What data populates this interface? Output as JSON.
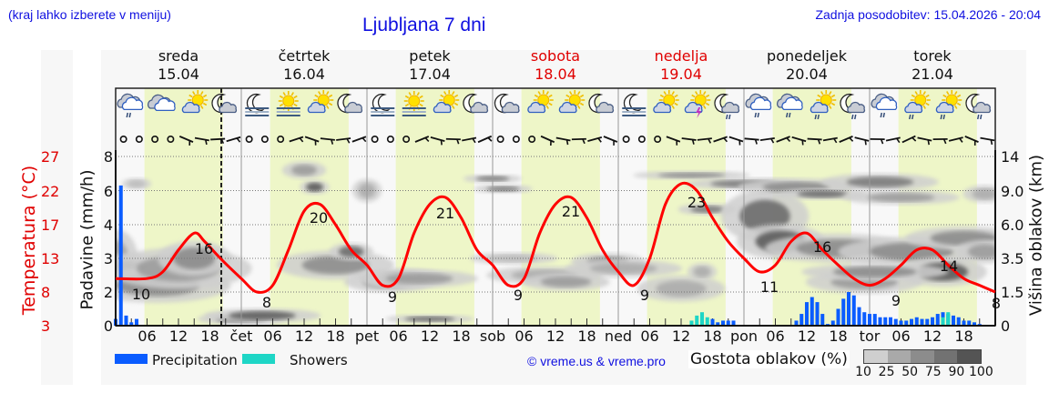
{
  "header": {
    "left_note": "(kraj lahko izberete v meniju)",
    "title": "Ljubljana 7 dni",
    "updated": "Zadnja posodobitev: 15.04.2026 - 20:04"
  },
  "days": [
    {
      "name": "sreda",
      "date": "15.04",
      "weekend": false
    },
    {
      "name": "četrtek",
      "date": "16.04",
      "weekend": false
    },
    {
      "name": "petek",
      "date": "17.04",
      "weekend": false
    },
    {
      "name": "sobota",
      "date": "18.04",
      "weekend": true
    },
    {
      "name": "nedelja",
      "date": "19.04",
      "weekend": true
    },
    {
      "name": "ponedeljek",
      "date": "20.04",
      "weekend": false
    },
    {
      "name": "torek",
      "date": "21.04",
      "weekend": false
    }
  ],
  "axes": {
    "temp_label": "Temperatura (°C)",
    "precip_label": "Padavine (mm/h)",
    "cloud_label": "Višina oblakov (km)",
    "temp_ticks": [
      "27",
      "22",
      "17",
      "13",
      "8",
      "3"
    ],
    "precip_ticks": [
      "8",
      "6",
      "4",
      "3",
      "2",
      "0"
    ],
    "cloud_ticks": [
      "14",
      "9.0",
      "6.0",
      "3.5",
      "1.5",
      "0"
    ],
    "x_ticks": [
      "06",
      "12",
      "18",
      "čet",
      "06",
      "12",
      "18",
      "pet",
      "06",
      "12",
      "18",
      "sob",
      "06",
      "12",
      "18",
      "ned",
      "06",
      "12",
      "18",
      "pon",
      "06",
      "12",
      "18",
      "tor",
      "06",
      "12",
      "18"
    ]
  },
  "legend": {
    "precipitation": "Precipitation",
    "showers": "Showers",
    "credit": "© vreme.us & vreme.pro",
    "cloud_density_label": "Gostota oblakov (%)",
    "cloud_density_ticks": [
      "10",
      "25",
      "50",
      "75",
      "90",
      "100"
    ]
  },
  "colors": {
    "temperature": "#ff0000",
    "precipitation": "#0a5cff",
    "showers": "#1ed6c6",
    "daylight": "#eef6c8",
    "title_blue": "#1010e0",
    "weekend_red": "#e00000"
  },
  "weather_icons": [
    "rain-cloud",
    "cloudy",
    "partly-sunny",
    "night-cloudy",
    "night-fog",
    "fog-sun",
    "partly-sunny",
    "night-cloudy",
    "night-fog",
    "fog-sun",
    "partly-sunny",
    "night-cloudy",
    "night-cloudy",
    "partly-sunny",
    "partly-sunny",
    "night-cloudy",
    "night-fog",
    "partly-sunny",
    "thunder-sun",
    "night-rain",
    "rain-cloud",
    "rain-cloud",
    "sun-rain",
    "night-rain",
    "rain-cloud",
    "sun-rain",
    "sun-rain",
    "night-rain"
  ],
  "chart_data": {
    "type": "line",
    "title": "Ljubljana 7 dni",
    "xlabel": "",
    "ylabel": "Temperatura (°C)",
    "ylim": [
      3,
      27
    ],
    "x_unit": "hours from 15.04 00:00",
    "now_marker_hour": 20,
    "series": [
      {
        "name": "Temperatura",
        "x": [
          0,
          6,
          9,
          12,
          15,
          17,
          20,
          24,
          27,
          30,
          33,
          36,
          39,
          42,
          45,
          48,
          51,
          54,
          57,
          60,
          63,
          66,
          69,
          72,
          75,
          78,
          81,
          84,
          87,
          90,
          93,
          96,
          99,
          102,
          105,
          108,
          111,
          114,
          117,
          120,
          123,
          126,
          129,
          132,
          135,
          138,
          141,
          144,
          147,
          150,
          153,
          156,
          159,
          162,
          165,
          168
        ],
        "values": [
          10,
          10,
          11,
          14,
          16,
          15,
          13,
          10,
          8,
          9,
          14,
          19,
          20,
          17,
          14,
          12,
          9,
          10,
          16,
          20,
          21,
          18,
          14,
          12,
          9,
          10,
          16,
          20,
          21,
          18,
          14,
          11,
          9,
          13,
          20,
          23,
          22,
          18,
          15,
          13,
          11,
          12,
          15,
          16,
          14,
          12,
          10,
          9,
          10,
          12,
          14,
          14,
          12,
          10,
          9,
          8
        ]
      },
      {
        "name": "Precipitation (mm/h)",
        "x": [
          0,
          1,
          2,
          3,
          4,
          114,
          115,
          116,
          117,
          118,
          130,
          131,
          132,
          133,
          134,
          135,
          136,
          137,
          138,
          139,
          140,
          141,
          142,
          143,
          144,
          145,
          146,
          147,
          148,
          149,
          150,
          151,
          152,
          153,
          154,
          155,
          156,
          157,
          158,
          159,
          160,
          161,
          162,
          163,
          164,
          165,
          166
        ],
        "values": [
          0.4,
          6.3,
          0.6,
          0.2,
          0.4,
          0.4,
          0.2,
          0.3,
          0.3,
          0.3,
          0.3,
          0.7,
          1.4,
          1.7,
          1.4,
          0.7,
          0.1,
          0.3,
          1.0,
          1.6,
          2.0,
          1.8,
          1.1,
          0.8,
          0.7,
          0.7,
          0.5,
          0.5,
          0.5,
          0.4,
          0.3,
          0.3,
          0.4,
          0.5,
          0.4,
          0.4,
          0.5,
          0.7,
          0.8,
          0.7,
          0.6,
          0.5,
          0.3,
          0.3,
          0.2,
          0.1,
          0.0
        ]
      },
      {
        "name": "Showers (mm/h)",
        "x": [
          110,
          111,
          112,
          113,
          158,
          159
        ],
        "values": [
          0.3,
          0.6,
          0.8,
          0.5,
          0.5,
          0.8
        ]
      }
    ],
    "annotations": [
      {
        "x": 3,
        "label": "10"
      },
      {
        "x": 16,
        "label": "16"
      },
      {
        "x": 28,
        "label": "8"
      },
      {
        "x": 38,
        "label": "20"
      },
      {
        "x": 52,
        "label": "9"
      },
      {
        "x": 63,
        "label": "21"
      },
      {
        "x": 76,
        "label": "9"
      },
      {
        "x": 87,
        "label": "21"
      },
      {
        "x": 100,
        "label": "9"
      },
      {
        "x": 110,
        "label": "23"
      },
      {
        "x": 124,
        "label": "11"
      },
      {
        "x": 134,
        "label": "16"
      },
      {
        "x": 148,
        "label": "9"
      },
      {
        "x": 158,
        "label": "14"
      },
      {
        "x": 168,
        "label": "8"
      }
    ],
    "secondary_axes": {
      "precipitation": {
        "label": "Padavine (mm/h)",
        "ticks": [
          0,
          2,
          3,
          4,
          6,
          8
        ]
      },
      "cloud_height": {
        "label": "Višina oblakov (km)",
        "ticks": [
          0,
          1.5,
          3.5,
          6.0,
          9.0,
          14
        ]
      }
    },
    "legend": [
      "Precipitation",
      "Showers",
      "Gostota oblakov (%)"
    ],
    "grid": true
  }
}
